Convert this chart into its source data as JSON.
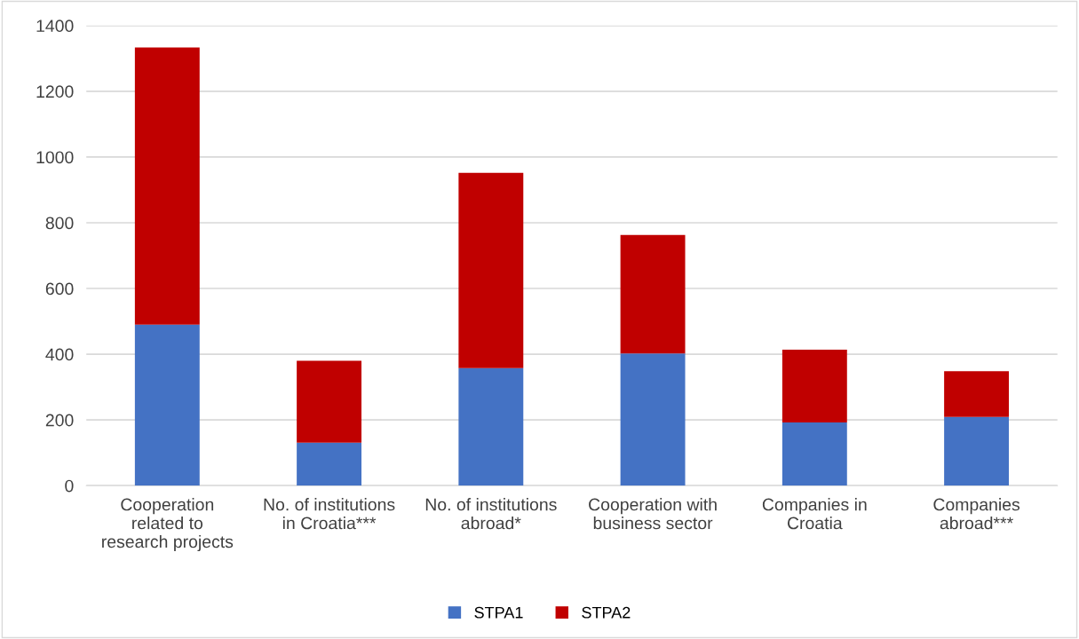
{
  "chart_data": {
    "type": "bar",
    "stacked": true,
    "categories": [
      "Cooperation\nrelated to\nresearch projects",
      "No. of institutions\nin Croatia***",
      "No. of institutions\nabroad*",
      "Cooperation with\nbusiness sector",
      "Companies in\nCroatia",
      "Companies\nabroad***"
    ],
    "series": [
      {
        "name": "STPA1",
        "color": "#4472c4",
        "values": [
          490,
          131,
          358,
          402,
          192,
          209
        ]
      },
      {
        "name": "STPA2",
        "color": "#c00000",
        "values": [
          843,
          249,
          594,
          361,
          222,
          139
        ]
      }
    ],
    "ylim": [
      0,
      1400
    ],
    "yticks": [
      0,
      200,
      400,
      600,
      800,
      1000,
      1200,
      1400
    ],
    "grid": "y",
    "legend": "bottom"
  }
}
